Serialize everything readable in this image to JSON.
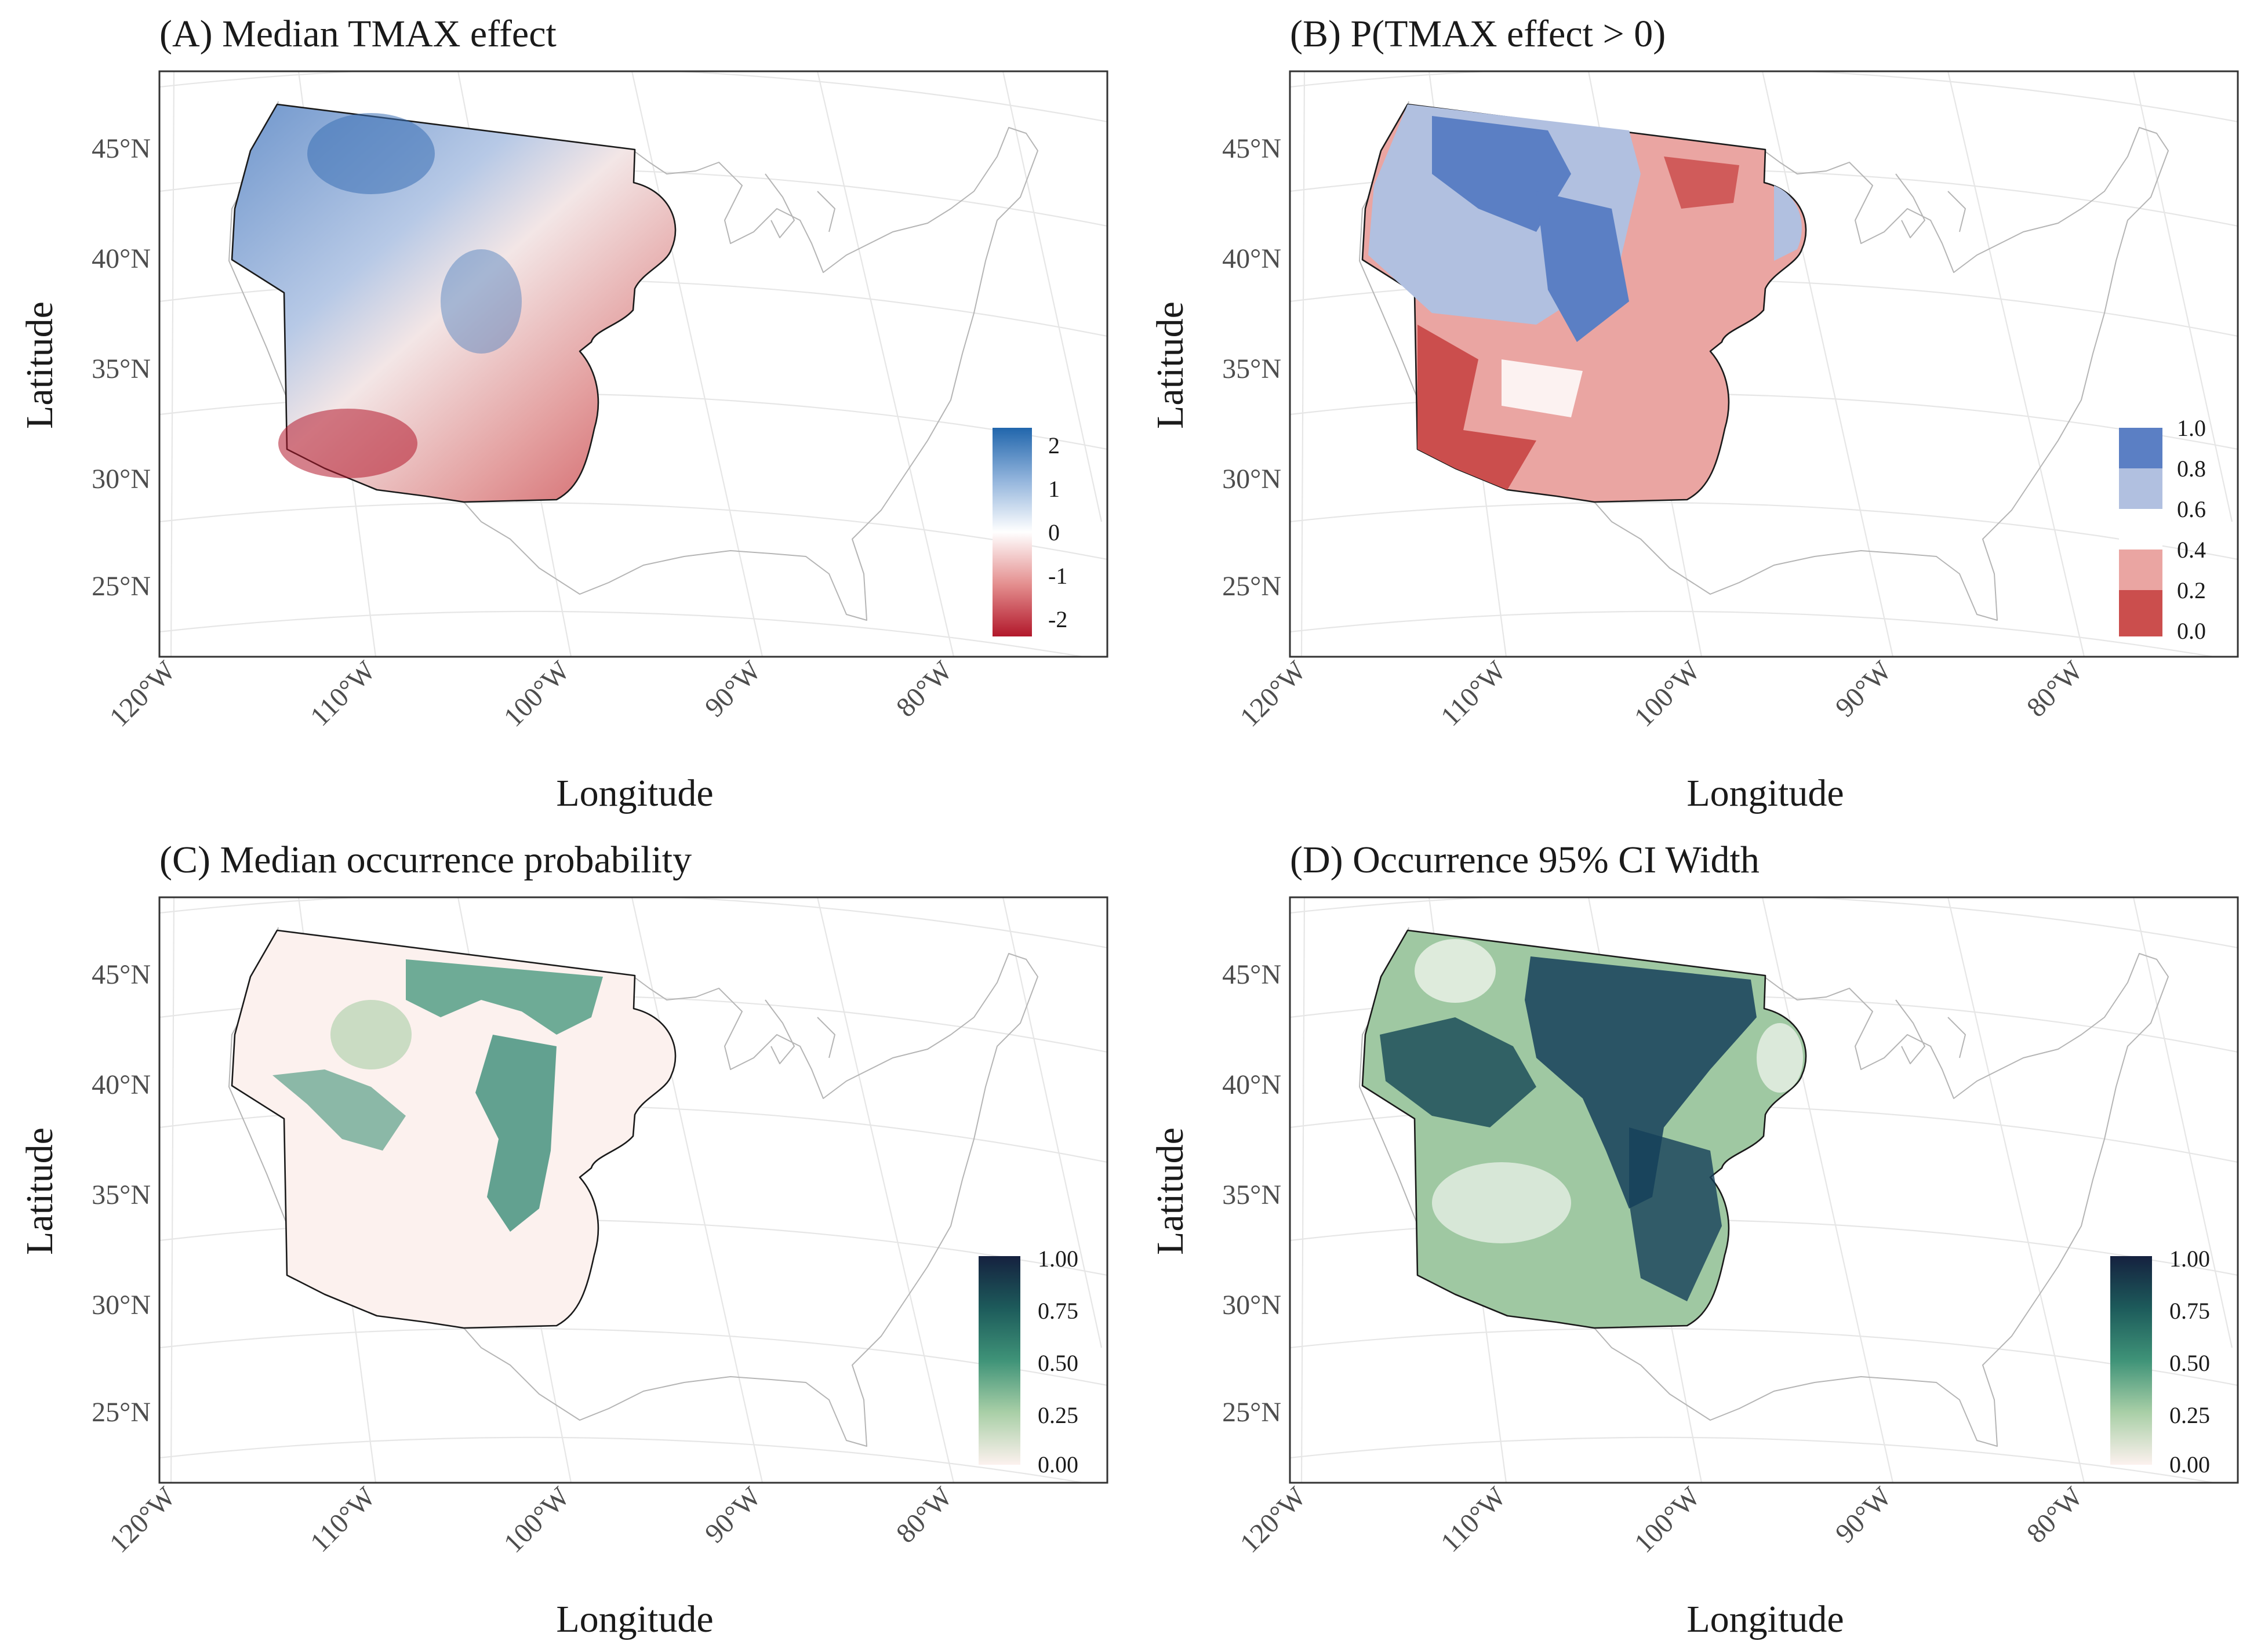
{
  "axes": {
    "x_title": "Longitude",
    "y_title": "Latitude",
    "x_ticks": [
      "120°W",
      "110°W",
      "100°W",
      "90°W",
      "80°W"
    ],
    "y_ticks": [
      "45°N",
      "40°N",
      "35°N",
      "30°N",
      "25°N"
    ]
  },
  "panels": [
    {
      "id": "A",
      "title": "(A) Median TMAX effect",
      "legend": {
        "type": "continuous",
        "ticks": [
          "2",
          "1",
          "0",
          "-1",
          "-2"
        ],
        "colors": [
          "#2166ac",
          "#92b4dc",
          "#ffffff",
          "#e48f8f",
          "#b2182b"
        ]
      }
    },
    {
      "id": "B",
      "title": "(B) P(TMAX effect > 0)",
      "legend": {
        "type": "binned",
        "ticks": [
          "1.0",
          "0.8",
          "0.6",
          "0.4",
          "0.2",
          "0.0"
        ],
        "colors": [
          "#5b7fc4",
          "#b1c0e0",
          "#ffffff",
          "#eaa5a2",
          "#cb4e4d"
        ]
      }
    },
    {
      "id": "C",
      "title": "(C) Median occurrence probability",
      "legend": {
        "type": "continuous",
        "ticks": [
          "1.00",
          "0.75",
          "0.50",
          "0.25",
          "0.00"
        ],
        "colors": [
          "#15213f",
          "#1d5b5b",
          "#3f9378",
          "#a9cfa7",
          "#fcf1ee"
        ]
      }
    },
    {
      "id": "D",
      "title": "(D) Occurrence 95% CI Width",
      "legend": {
        "type": "continuous",
        "ticks": [
          "1.00",
          "0.75",
          "0.50",
          "0.25",
          "0.00"
        ],
        "colors": [
          "#15213f",
          "#1d5b5b",
          "#3f9378",
          "#a9cfa7",
          "#fcf1ee"
        ]
      }
    }
  ]
}
